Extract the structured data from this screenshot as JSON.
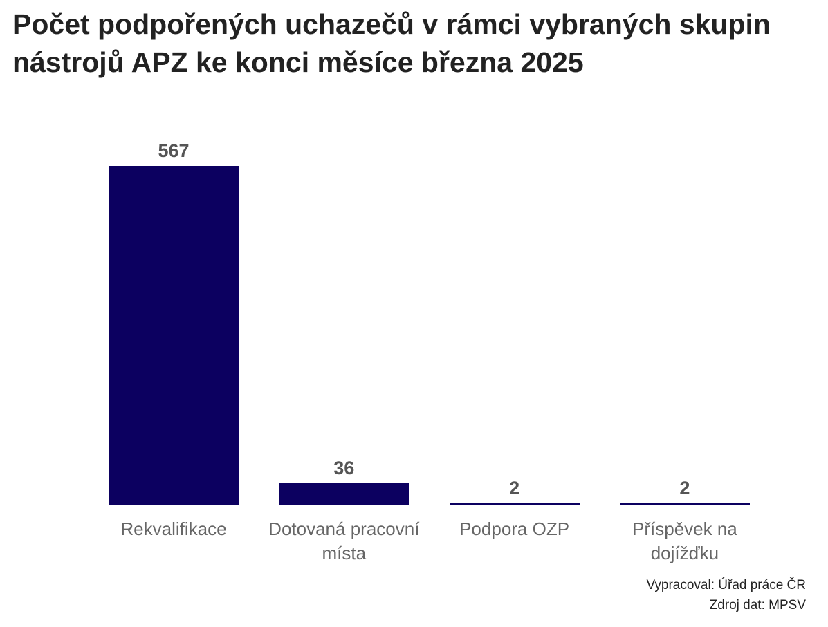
{
  "chart_data": {
    "type": "bar",
    "title": "Počet podpořených uchazečů v rámci vybraných skupin nástrojů APZ ke konci měsíce března 2025",
    "categories": [
      "Rekvalifikace",
      "Dotovaná pracovní místa",
      "Podpora OZP",
      "Příspěvek na dojížďku"
    ],
    "values": [
      567,
      36,
      2,
      2
    ],
    "color": "#0c0060",
    "credits": [
      "Vypracoval: Úřad práce ČR",
      "Zdroj dat: MPSV"
    ]
  }
}
